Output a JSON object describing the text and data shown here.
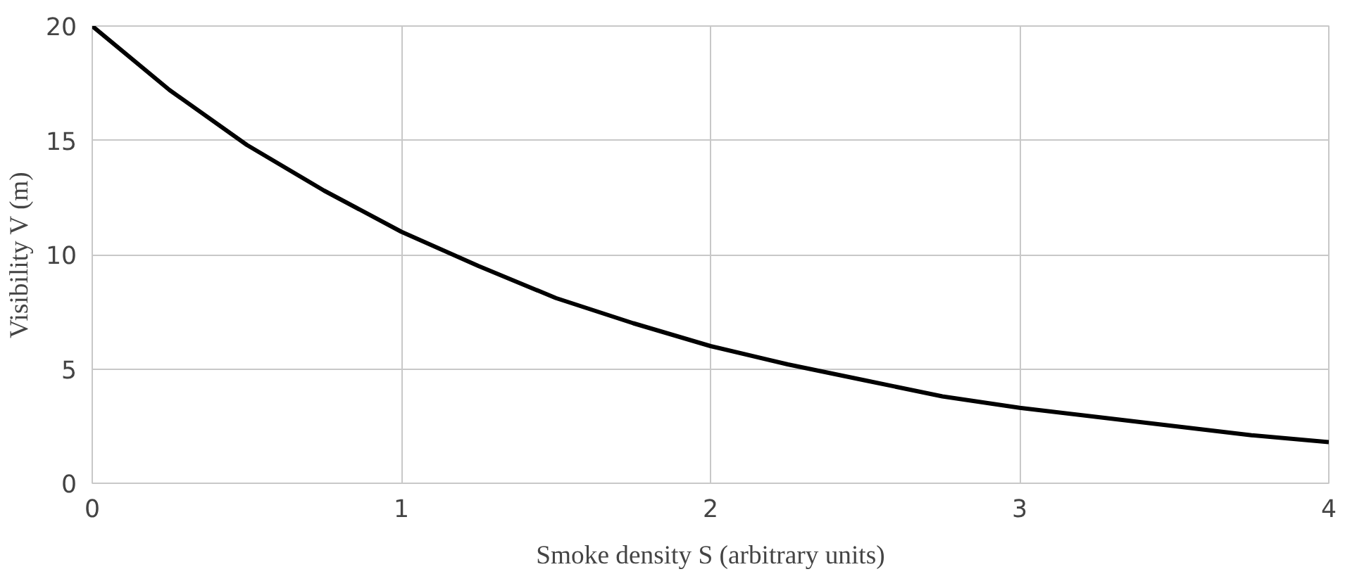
{
  "chart_data": {
    "type": "line",
    "xlabel": "Smoke density S (arbitrary units)",
    "ylabel": "Visibility V (m)",
    "x": [
      0,
      0.25,
      0.5,
      0.75,
      1,
      1.25,
      1.5,
      1.75,
      2,
      2.25,
      2.5,
      2.75,
      3,
      3.25,
      3.5,
      3.75,
      4
    ],
    "series": [
      {
        "color": "#000000",
        "values": [
          20,
          17.2,
          14.8,
          12.8,
          11.0,
          9.5,
          8.1,
          7.0,
          6.0,
          5.2,
          4.5,
          3.8,
          3.3,
          2.9,
          2.5,
          2.1,
          1.8
        ]
      }
    ],
    "xlim": [
      0,
      4
    ],
    "ylim": [
      0,
      20
    ],
    "xticks": [
      0,
      1,
      2,
      3,
      4
    ],
    "yticks": [
      0,
      5,
      10,
      15,
      20
    ],
    "grid": true,
    "marker": "none",
    "line_style": "solid"
  }
}
